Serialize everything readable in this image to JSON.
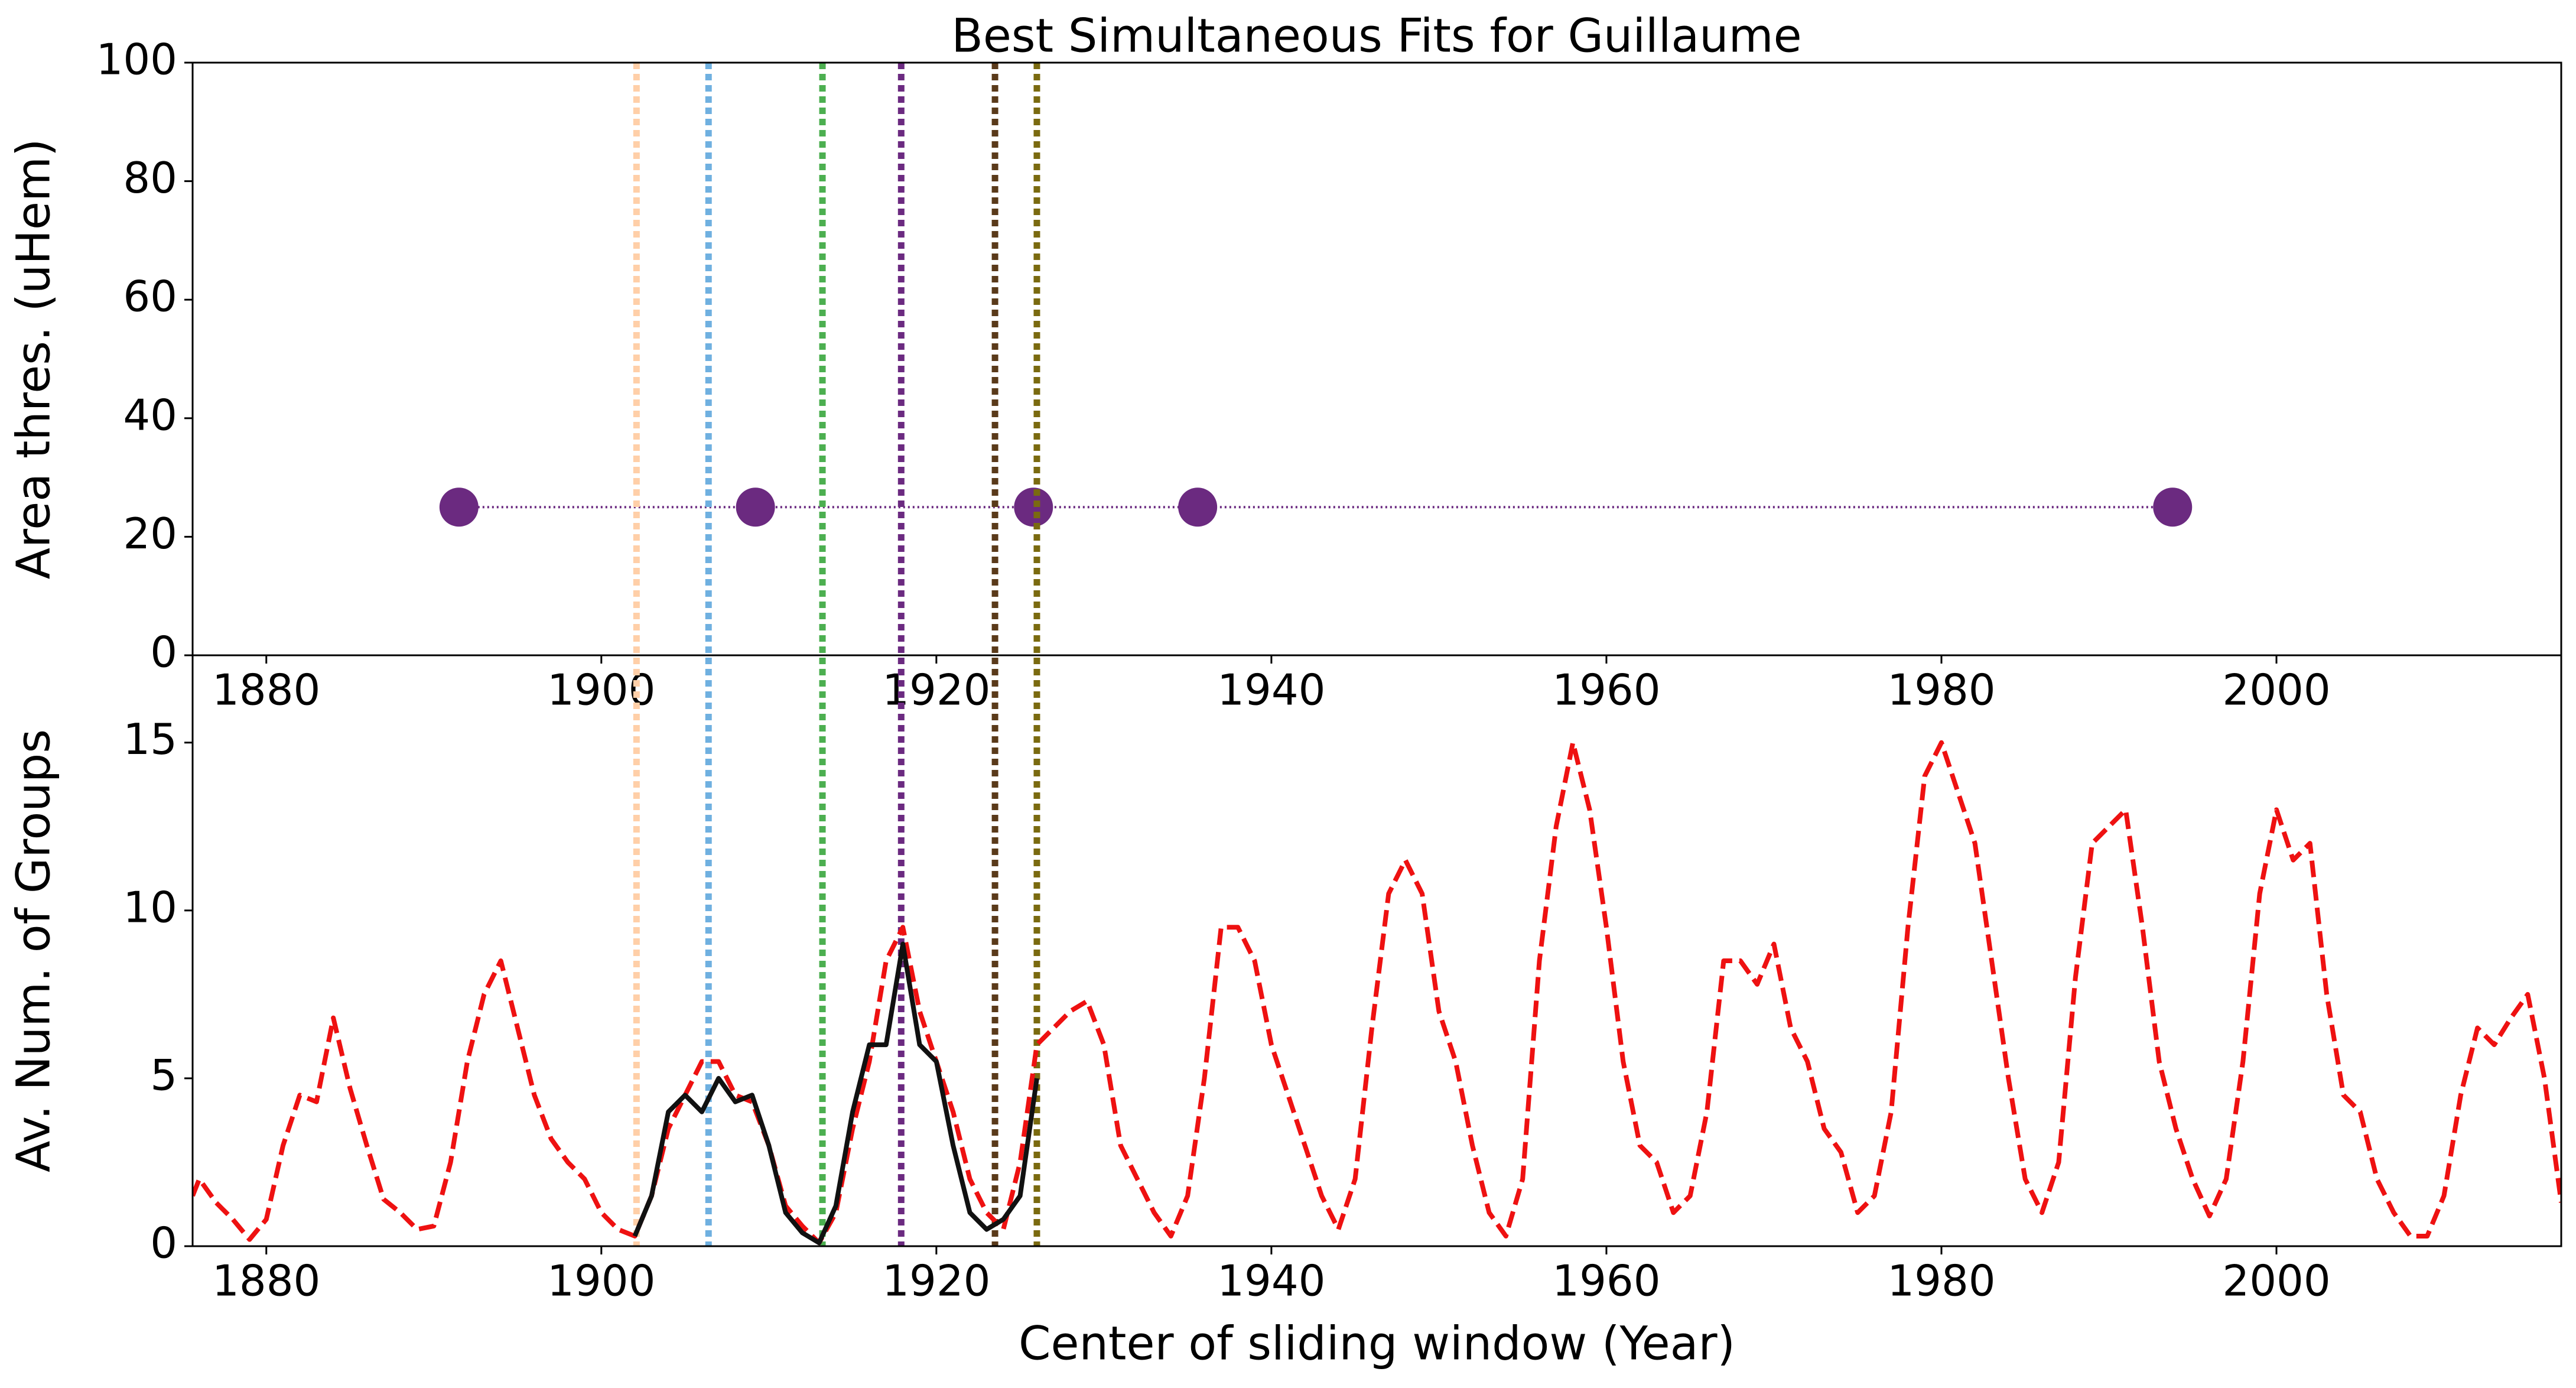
{
  "chart_data": [
    {
      "type": "scatter",
      "title": "Best Simultaneous Fits for Guillaume",
      "ylabel": "Area thres. (uHem)",
      "xlim": [
        1875.6,
        2017
      ],
      "xticks": [
        1880,
        1900,
        1920,
        1940,
        1960,
        1980,
        2000
      ],
      "ylim": [
        0,
        100
      ],
      "yticks": [
        0,
        20,
        40,
        60,
        80,
        100
      ],
      "series": [
        {
          "color": "#6b2a80",
          "x": [
            1891.5,
            1909.2,
            1925.8,
            1935.6,
            1993.8
          ],
          "values": [
            25,
            25,
            25,
            25,
            25
          ]
        }
      ],
      "vlines": {
        "x": [
          1902.1,
          1906.4,
          1913.2,
          1917.9,
          1923.5,
          1926.0
        ],
        "colors": [
          "#ffcfa8",
          "#6fb0e0",
          "#4caf50",
          "#6b2a80",
          "#5a3a1a",
          "#7a6a10"
        ]
      }
    },
    {
      "type": "line",
      "ylabel": "Av. Num. of Groups",
      "xlabel": "Center of sliding window (Year)",
      "xlim": [
        1875.6,
        2017
      ],
      "xticks": [
        1880,
        1900,
        1920,
        1940,
        1960,
        1980,
        2000
      ],
      "ylim": [
        0,
        17.6
      ],
      "yticks": [
        0,
        5,
        10,
        15
      ],
      "series": [
        {
          "color": "#ee1111",
          "dash": true,
          "x": [
            1875.6,
            1876,
            1877,
            1878,
            1879,
            1880,
            1881,
            1882,
            1883,
            1884,
            1885,
            1886,
            1887,
            1888,
            1889,
            1890,
            1891,
            1892,
            1893,
            1894,
            1895,
            1896,
            1897,
            1898,
            1899,
            1900,
            1901,
            1902,
            1903,
            1904,
            1905,
            1906,
            1907,
            1908,
            1909,
            1910,
            1911,
            1912,
            1913,
            1914,
            1915,
            1916,
            1917,
            1918,
            1919,
            1920,
            1921,
            1922,
            1923,
            1924,
            1925,
            1926,
            1927,
            1928,
            1929,
            1930,
            1931,
            1932,
            1933,
            1934,
            1935,
            1936,
            1937,
            1938,
            1939,
            1940,
            1941,
            1942,
            1943,
            1944,
            1945,
            1946,
            1947,
            1948,
            1949,
            1950,
            1951,
            1952,
            1953,
            1954,
            1955,
            1956,
            1957,
            1958,
            1959,
            1960,
            1961,
            1962,
            1963,
            1964,
            1965,
            1966,
            1967,
            1968,
            1969,
            1970,
            1971,
            1972,
            1973,
            1974,
            1975,
            1976,
            1977,
            1978,
            1979,
            1980,
            1981,
            1982,
            1983,
            1984,
            1985,
            1986,
            1987,
            1988,
            1989,
            1990,
            1991,
            1992,
            1993,
            1994,
            1995,
            1996,
            1997,
            1998,
            1999,
            2000,
            2001,
            2002,
            2003,
            2004,
            2005,
            2006,
            2007,
            2008,
            2009,
            2010,
            2011,
            2012,
            2013,
            2014,
            2015,
            2016,
            2017
          ],
          "values": [
            1.5,
            2.0,
            1.3,
            0.8,
            0.2,
            0.8,
            3,
            4.5,
            4.3,
            6.8,
            4.7,
            3,
            1.4,
            1.0,
            0.5,
            0.6,
            2.5,
            5.5,
            7.5,
            8.5,
            6.5,
            4.5,
            3.2,
            2.5,
            2.0,
            1.0,
            0.5,
            0.3,
            1.5,
            3.5,
            4.5,
            5.5,
            5.5,
            4.5,
            4.3,
            3.0,
            1.2,
            0.6,
            0.1,
            1.0,
            3.5,
            5.5,
            8.5,
            9.5,
            7.0,
            5.5,
            4.0,
            2.0,
            1.0,
            0.5,
            2.5,
            6.0,
            6.5,
            7.0,
            7.3,
            6.0,
            3.0,
            2.0,
            1.0,
            0.3,
            1.5,
            5.0,
            9.5,
            9.5,
            8.5,
            6.0,
            4.5,
            3.0,
            1.5,
            0.5,
            2.0,
            6.5,
            10.5,
            11.5,
            10.5,
            7.0,
            5.5,
            3.0,
            1.0,
            0.3,
            2.0,
            8.5,
            12.5,
            15.0,
            13.0,
            9.5,
            5.5,
            3.0,
            2.5,
            1.0,
            1.5,
            4.0,
            8.5,
            8.5,
            7.8,
            9.0,
            6.5,
            5.5,
            3.5,
            2.8,
            1.0,
            1.5,
            4.0,
            9.5,
            14.0,
            15.0,
            13.5,
            12.0,
            8.5,
            5.0,
            2.0,
            1.0,
            2.5,
            8.0,
            12.0,
            12.5,
            13.0,
            9.5,
            5.5,
            3.5,
            2.0,
            0.9,
            2.0,
            5.5,
            10.5,
            13.0,
            11.5,
            12.0,
            7.5,
            4.5,
            4.0,
            2.0,
            1.0,
            0.3,
            0.3,
            1.5,
            4.5,
            6.5,
            6.0,
            6.8,
            7.5,
            5.0,
            1.3
          ]
        },
        {
          "color": "#111111",
          "dash": false,
          "x": [
            1902,
            1903,
            1904,
            1905,
            1906,
            1907,
            1908,
            1909,
            1910,
            1911,
            1912,
            1913,
            1914,
            1915,
            1916,
            1917,
            1918,
            1919,
            1920,
            1921,
            1922,
            1923,
            1924,
            1925,
            1926
          ],
          "values": [
            0.3,
            1.5,
            4,
            4.5,
            4,
            5,
            4.3,
            4.5,
            3,
            1,
            0.4,
            0.1,
            1.2,
            4,
            6,
            6,
            9,
            6,
            5.5,
            3,
            1,
            0.5,
            0.8,
            1.5,
            5
          ]
        }
      ]
    }
  ]
}
